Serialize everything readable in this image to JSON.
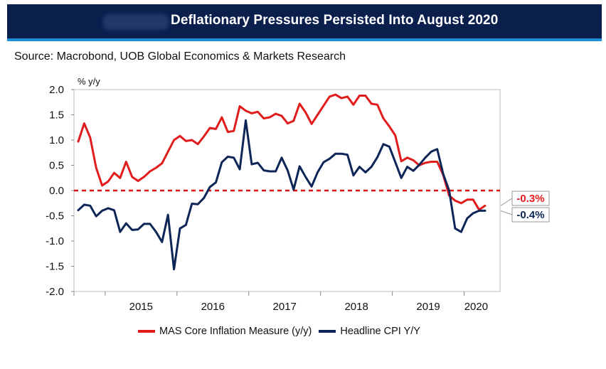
{
  "header": {
    "title": "Deflationary Pressures Persisted Into August 2020"
  },
  "source": "Source: Macrobond, UOB Global Economics & Markets Research",
  "chart_data": {
    "type": "line",
    "title": "Deflationary Pressures Persisted Into August 2020",
    "ylabel": "% y/y",
    "xlabel": "",
    "ylim": [
      -2.0,
      2.0
    ],
    "yticks": [
      "2.0",
      "1.5",
      "1.0",
      "0.5",
      "0.0",
      "-0.5",
      "-1.0",
      "-1.5",
      "-2.0"
    ],
    "year_labels": [
      "2015",
      "2016",
      "2017",
      "2018",
      "2019",
      "2020"
    ],
    "x_start": "2014-08",
    "x_end": "2020-08",
    "reference_line": 0.0,
    "grid": false,
    "legend_position": "bottom",
    "series": [
      {
        "name": "MAS Core Inflation Measure (y/y)",
        "color": "#e11c1c",
        "end_label": "-0.3%",
        "values": [
          0.97,
          1.33,
          1.05,
          0.45,
          0.1,
          0.18,
          0.35,
          0.25,
          0.57,
          0.27,
          0.19,
          0.27,
          0.38,
          0.45,
          0.54,
          0.77,
          1.0,
          1.08,
          0.98,
          1.0,
          0.92,
          1.07,
          1.24,
          1.22,
          1.45,
          1.16,
          1.18,
          1.67,
          1.58,
          1.53,
          1.56,
          1.43,
          1.45,
          1.52,
          1.48,
          1.33,
          1.38,
          1.72,
          1.55,
          1.32,
          1.5,
          1.68,
          1.86,
          1.9,
          1.83,
          1.86,
          1.7,
          1.88,
          1.88,
          1.72,
          1.7,
          1.43,
          1.27,
          1.09,
          0.58,
          0.65,
          0.6,
          0.5,
          0.55,
          0.57,
          0.57,
          0.31,
          -0.1,
          -0.2,
          -0.25,
          -0.18,
          -0.18,
          -0.38,
          -0.3
        ]
      },
      {
        "name": "Headline CPI Y/Y",
        "color": "#0d2557",
        "end_label": "-0.4%",
        "values": [
          -0.39,
          -0.28,
          -0.3,
          -0.51,
          -0.4,
          -0.35,
          -0.39,
          -0.82,
          -0.65,
          -0.78,
          -0.77,
          -0.66,
          -0.66,
          -0.82,
          -1.02,
          -0.48,
          -1.56,
          -0.75,
          -0.68,
          -0.26,
          -0.27,
          -0.15,
          0.07,
          0.16,
          0.56,
          0.67,
          0.65,
          0.42,
          1.39,
          0.52,
          0.55,
          0.4,
          0.38,
          0.38,
          0.65,
          0.4,
          0.02,
          0.48,
          0.27,
          0.08,
          0.36,
          0.56,
          0.63,
          0.73,
          0.73,
          0.71,
          0.3,
          0.47,
          0.36,
          0.47,
          0.66,
          0.92,
          0.87,
          0.56,
          0.25,
          0.47,
          0.39,
          0.51,
          0.65,
          0.77,
          0.82,
          0.33,
          0.0,
          -0.75,
          -0.82,
          -0.55,
          -0.45,
          -0.4,
          -0.4
        ]
      }
    ]
  }
}
